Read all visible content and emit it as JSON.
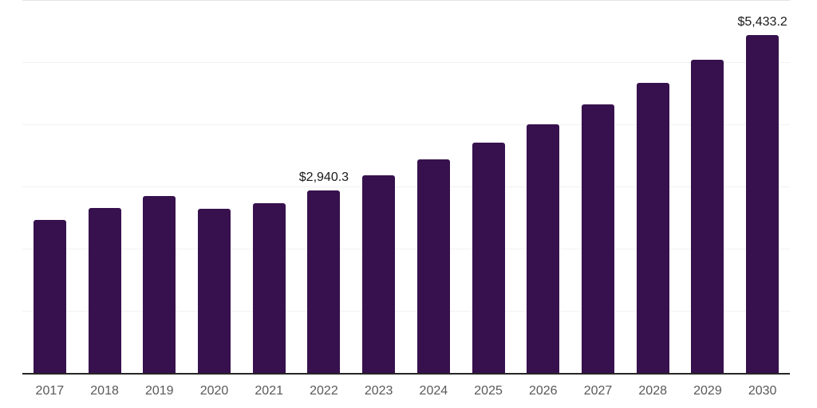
{
  "chart_data": {
    "type": "bar",
    "title": "",
    "xlabel": "",
    "ylabel": "",
    "categories": [
      "2017",
      "2018",
      "2019",
      "2020",
      "2021",
      "2022",
      "2023",
      "2024",
      "2025",
      "2026",
      "2027",
      "2028",
      "2029",
      "2030"
    ],
    "values": [
      2460,
      2650,
      2845,
      2635,
      2730,
      2940.3,
      3176,
      3430,
      3704,
      4000,
      4320,
      4666,
      5039,
      5433.2
    ],
    "data_labels": {
      "2022": "$2,940.3",
      "2030": "$5,433.2"
    },
    "ylim": [
      0,
      6000
    ],
    "gridline_interval": 1000,
    "grid": "horizontal",
    "y_tick_labels_visible": false,
    "legend": "none",
    "colors": {
      "bar": "#37114d",
      "axis_line": "#262626",
      "gridline": "#f2f2f2",
      "top_gridline": "#e4e4e4",
      "tick_label": "#595959",
      "data_label": "#1a1a1a",
      "background": "#ffffff"
    }
  }
}
